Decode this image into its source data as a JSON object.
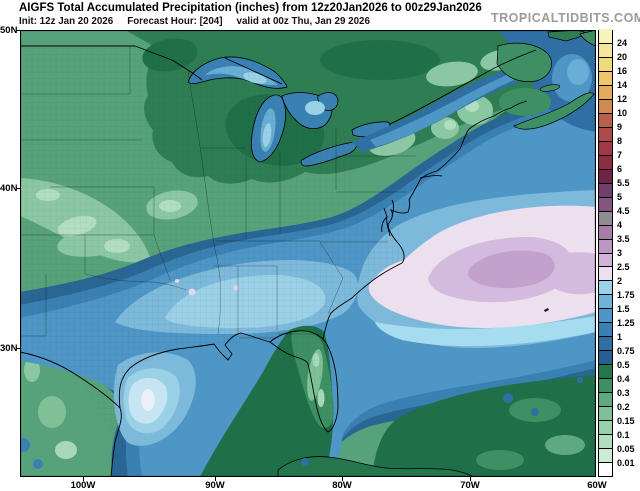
{
  "header": {
    "title": "AIGFS Total Accumulated Precipitation (inches) from 12z20Jan2026 to 00z29Jan2026",
    "watermark": "TROPICALTIDBITS.COM"
  },
  "subheader": {
    "init": "Init: 12z Jan 20 2026",
    "forecast_hour": "Forecast Hour: [204]",
    "valid": "valid at 00z Thu, Jan 29 2026"
  },
  "axes": {
    "lat": [
      "50N",
      "40N",
      "30N"
    ],
    "lon": [
      "100W",
      "90W",
      "80W",
      "70W",
      "60W"
    ]
  },
  "colorbar": {
    "units": "inches",
    "values_bottom_to_top": [
      "0.01",
      "0.05",
      "0.1",
      "0.15",
      "0.2",
      "0.3",
      "0.4",
      "0.5",
      "0.75",
      "1",
      "1.25",
      "1.5",
      "1.75",
      "2",
      "2.5",
      "3",
      "3.5",
      "4",
      "4.5",
      "5",
      "5.5",
      "6",
      "7",
      "8",
      "9",
      "10",
      "12",
      "14",
      "16",
      "20",
      "24"
    ],
    "colors_bottom_to_top": [
      "#ffffff",
      "#cdead5",
      "#b2dec0",
      "#98d0ab",
      "#7fc096",
      "#5ea981",
      "#3f8f64",
      "#25754d",
      "#286093",
      "#2f6fa3",
      "#3a81b3",
      "#4e96c5",
      "#6fb3d6",
      "#9bd1e6",
      "#ecdfee",
      "#d2b4d8",
      "#bd97c3",
      "#a87caa",
      "#8e8e92",
      "#84537f",
      "#713f6b",
      "#6e2545",
      "#8b2e42",
      "#9e3a46",
      "#b04a49",
      "#b8604c",
      "#cd8a52",
      "#e3ac5d",
      "#ecc769",
      "#efd87d",
      "#f4e69a",
      "#f9f3bb"
    ]
  },
  "map_palette": {
    "base_land_green": "#57a27b",
    "dark_green": "#1f6f49",
    "mid_green": "#2e7d53",
    "light_green": "#8cc7a4",
    "pale_green": "#b2dec0",
    "dark_blue": "#2a6694",
    "mid_blue": "#4e96c5",
    "pale_blue": "#9bd1e6",
    "pale_pink": "#ecdfee",
    "mauve": "#d4badc"
  }
}
